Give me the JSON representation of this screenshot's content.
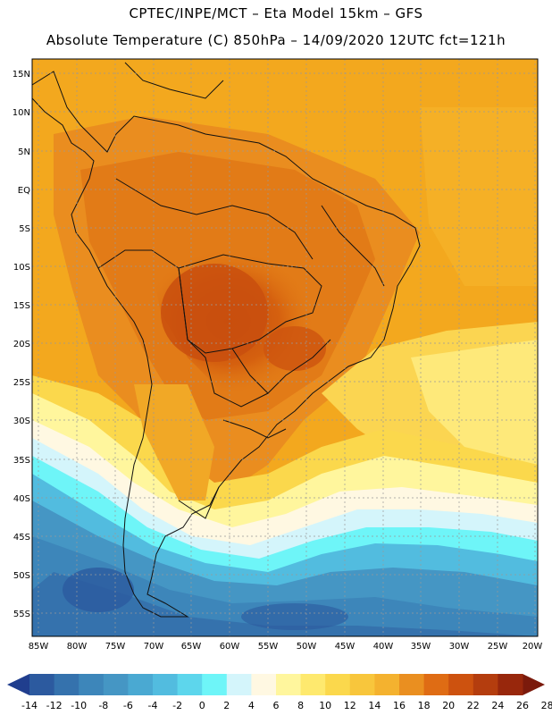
{
  "header": {
    "title_line1": "CPTEC/INPE/MCT –  Eta Model 15km – GFS",
    "title_line2": "Absolute Temperature (C) 850hPa – 14/09/2020 12UTC fct=121h"
  },
  "map": {
    "lat_labels": [
      "15N",
      "10N",
      "5N",
      "EQ",
      "5S",
      "10S",
      "15S",
      "20S",
      "25S",
      "30S",
      "35S",
      "40S",
      "45S",
      "50S",
      "55S"
    ],
    "lon_labels": [
      "85W",
      "80W",
      "75W",
      "70W",
      "65W",
      "60W",
      "55W",
      "50W",
      "45W",
      "40W",
      "35W",
      "30W",
      "25W",
      "20W"
    ]
  },
  "colorbar": {
    "labels": [
      "-14",
      "-12",
      "-10",
      "-8",
      "-6",
      "-4",
      "-2",
      "0",
      "2",
      "4",
      "6",
      "8",
      "10",
      "12",
      "14",
      "16",
      "18",
      "20",
      "22",
      "24",
      "26",
      "28"
    ],
    "colors": [
      "#203e8e",
      "#2c5a9f",
      "#3572ad",
      "#3d86ba",
      "#4596c4",
      "#4aa9d2",
      "#52bcdf",
      "#5dd6ec",
      "#6ef5f8",
      "#d4f5fb",
      "#fff8e2",
      "#fff69d",
      "#fee96e",
      "#fbd84c",
      "#f8c63c",
      "#f4b22f",
      "#ea8f20",
      "#df6c14",
      "#cd520f",
      "#b43d0e",
      "#98270c",
      "#7b1a0c"
    ]
  }
}
